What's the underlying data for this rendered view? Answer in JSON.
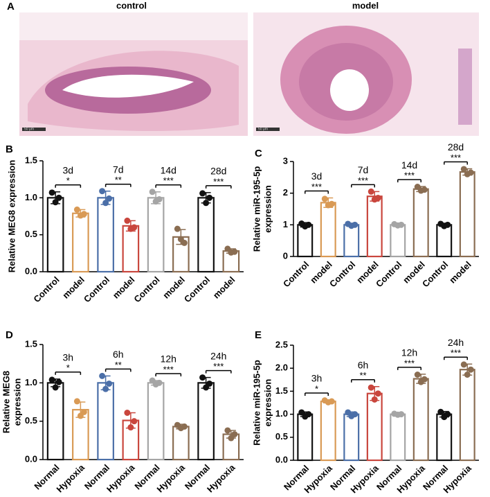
{
  "panel_a": {
    "label": "A",
    "images": [
      "control",
      "model"
    ],
    "scale_bar": "50 μm"
  },
  "chart_data": [
    {
      "type": "bar",
      "panel": "B",
      "ylabel": [
        "Relative MEG8 expression"
      ],
      "categories": [
        "Control",
        "model",
        "Control",
        "model",
        "Control",
        "model",
        "Control",
        "model"
      ],
      "values": [
        1.0,
        0.79,
        1.0,
        0.62,
        1.0,
        0.47,
        1.0,
        0.28
      ],
      "errors": [
        0.08,
        0.05,
        0.09,
        0.07,
        0.08,
        0.1,
        0.07,
        0.03
      ],
      "points": [
        [
          1.07,
          0.94,
          1.0
        ],
        [
          0.84,
          0.76,
          0.78
        ],
        [
          1.09,
          0.93,
          0.99
        ],
        [
          0.69,
          0.58,
          0.6
        ],
        [
          1.08,
          0.95,
          0.98
        ],
        [
          0.58,
          0.44,
          0.39
        ],
        [
          1.06,
          0.93,
          1.0
        ],
        [
          0.31,
          0.26,
          0.27
        ]
      ],
      "colors": [
        "#111111",
        "#d99a55",
        "#4b6fa8",
        "#c9463d",
        "#a5a5a5",
        "#8a6d52",
        "#111111",
        "#8a6d52"
      ],
      "groups": [
        "3d",
        "7d",
        "14d",
        "28d"
      ],
      "significance": [
        "*",
        "**",
        "***",
        "***"
      ],
      "ylim": [
        0,
        1.5
      ],
      "yticks": [
        {
          "value": 0,
          "label": "0.0"
        },
        0.5,
        {
          "value": 1,
          "label": "1.0"
        },
        1.5
      ]
    },
    {
      "type": "bar",
      "panel": "C",
      "ylabel": [
        "Relative miR-195-5p",
        "expression"
      ],
      "categories": [
        "Control",
        "model",
        "Control",
        "model",
        "Control",
        "model",
        "Control",
        "model"
      ],
      "values": [
        1.0,
        1.7,
        1.0,
        1.9,
        1.0,
        2.13,
        1.0,
        2.67
      ],
      "errors": [
        0.07,
        0.15,
        0.05,
        0.15,
        0.05,
        0.08,
        0.05,
        0.1
      ],
      "points": [
        [
          1.04,
          0.95,
          1.0
        ],
        [
          1.82,
          1.62,
          1.66
        ],
        [
          1.03,
          0.97,
          1.0
        ],
        [
          2.05,
          1.8,
          1.85
        ],
        [
          1.02,
          0.98,
          1.0
        ],
        [
          2.2,
          2.08,
          2.11
        ],
        [
          1.03,
          0.96,
          1.0
        ],
        [
          2.76,
          2.6,
          2.65
        ]
      ],
      "colors": [
        "#111111",
        "#d99a55",
        "#4b6fa8",
        "#c9463d",
        "#a5a5a5",
        "#8a6d52",
        "#111111",
        "#8a6d52"
      ],
      "groups": [
        "3d",
        "7d",
        "14d",
        "28d"
      ],
      "significance": [
        "***",
        "***",
        "***",
        "***"
      ],
      "ylim": [
        0,
        3
      ],
      "yticks": [
        0,
        1,
        2,
        3
      ]
    },
    {
      "type": "bar",
      "panel": "D",
      "ylabel": [
        "Relative MEG8",
        "expression"
      ],
      "categories": [
        "Normal",
        "Hypoxia",
        "Normal",
        "Hypoxia",
        "Normal",
        "Hypoxia",
        "Normal",
        "Hypoxia"
      ],
      "values": [
        1.0,
        0.65,
        1.0,
        0.51,
        1.0,
        0.43,
        1.0,
        0.33
      ],
      "errors": [
        0.05,
        0.1,
        0.09,
        0.1,
        0.03,
        0.03,
        0.07,
        0.05
      ],
      "points": [
        [
          1.04,
          0.94,
          1.01
        ],
        [
          0.76,
          0.57,
          0.62
        ],
        [
          1.09,
          0.92,
          0.99
        ],
        [
          0.61,
          0.42,
          0.5
        ],
        [
          1.03,
          0.98,
          1.0
        ],
        [
          0.45,
          0.41,
          0.43
        ],
        [
          1.07,
          0.94,
          0.99
        ],
        [
          0.38,
          0.28,
          0.33
        ]
      ],
      "colors": [
        "#111111",
        "#d99a55",
        "#4b6fa8",
        "#c9463d",
        "#a5a5a5",
        "#8a6d52",
        "#111111",
        "#8a6d52"
      ],
      "groups": [
        "3h",
        "6h",
        "12h",
        "24h"
      ],
      "significance": [
        "*",
        "**",
        "***",
        "***"
      ],
      "ylim": [
        0,
        1.5
      ],
      "yticks": [
        {
          "value": 0,
          "label": "0.0"
        },
        0.5,
        {
          "value": 1,
          "label": "1.0"
        },
        1.5
      ]
    },
    {
      "type": "bar",
      "panel": "E",
      "ylabel": [
        "Relative miR-195-5p",
        "expression"
      ],
      "categories": [
        "Normal",
        "Hypoxia",
        "Normal",
        "Hypoxia",
        "Normal",
        "Hypoxia",
        "Normal",
        "Hypoxia"
      ],
      "values": [
        1.0,
        1.28,
        1.0,
        1.45,
        1.0,
        1.77,
        1.0,
        1.97
      ],
      "errors": [
        0.05,
        0.03,
        0.05,
        0.15,
        0.02,
        0.1,
        0.06,
        0.12
      ],
      "points": [
        [
          1.04,
          0.95,
          1.0
        ],
        [
          1.3,
          1.26,
          1.28
        ],
        [
          1.04,
          0.96,
          1.0
        ],
        [
          1.58,
          1.32,
          1.45
        ],
        [
          1.01,
          0.99,
          1.0
        ],
        [
          1.86,
          1.7,
          1.76
        ],
        [
          1.05,
          0.94,
          1.0
        ],
        [
          2.08,
          1.86,
          1.97
        ]
      ],
      "colors": [
        "#111111",
        "#d99a55",
        "#4b6fa8",
        "#c9463d",
        "#a5a5a5",
        "#8a6d52",
        "#111111",
        "#8a6d52"
      ],
      "groups": [
        "3h",
        "6h",
        "12h",
        "24h"
      ],
      "significance": [
        "*",
        "**",
        "***",
        "***"
      ],
      "ylim": [
        0,
        2.5
      ],
      "yticks": [
        {
          "value": 0,
          "label": "0.0"
        },
        0.5,
        {
          "value": 1,
          "label": "1.0"
        },
        1.5,
        {
          "value": 2,
          "label": "2.0"
        },
        2.5
      ]
    }
  ]
}
